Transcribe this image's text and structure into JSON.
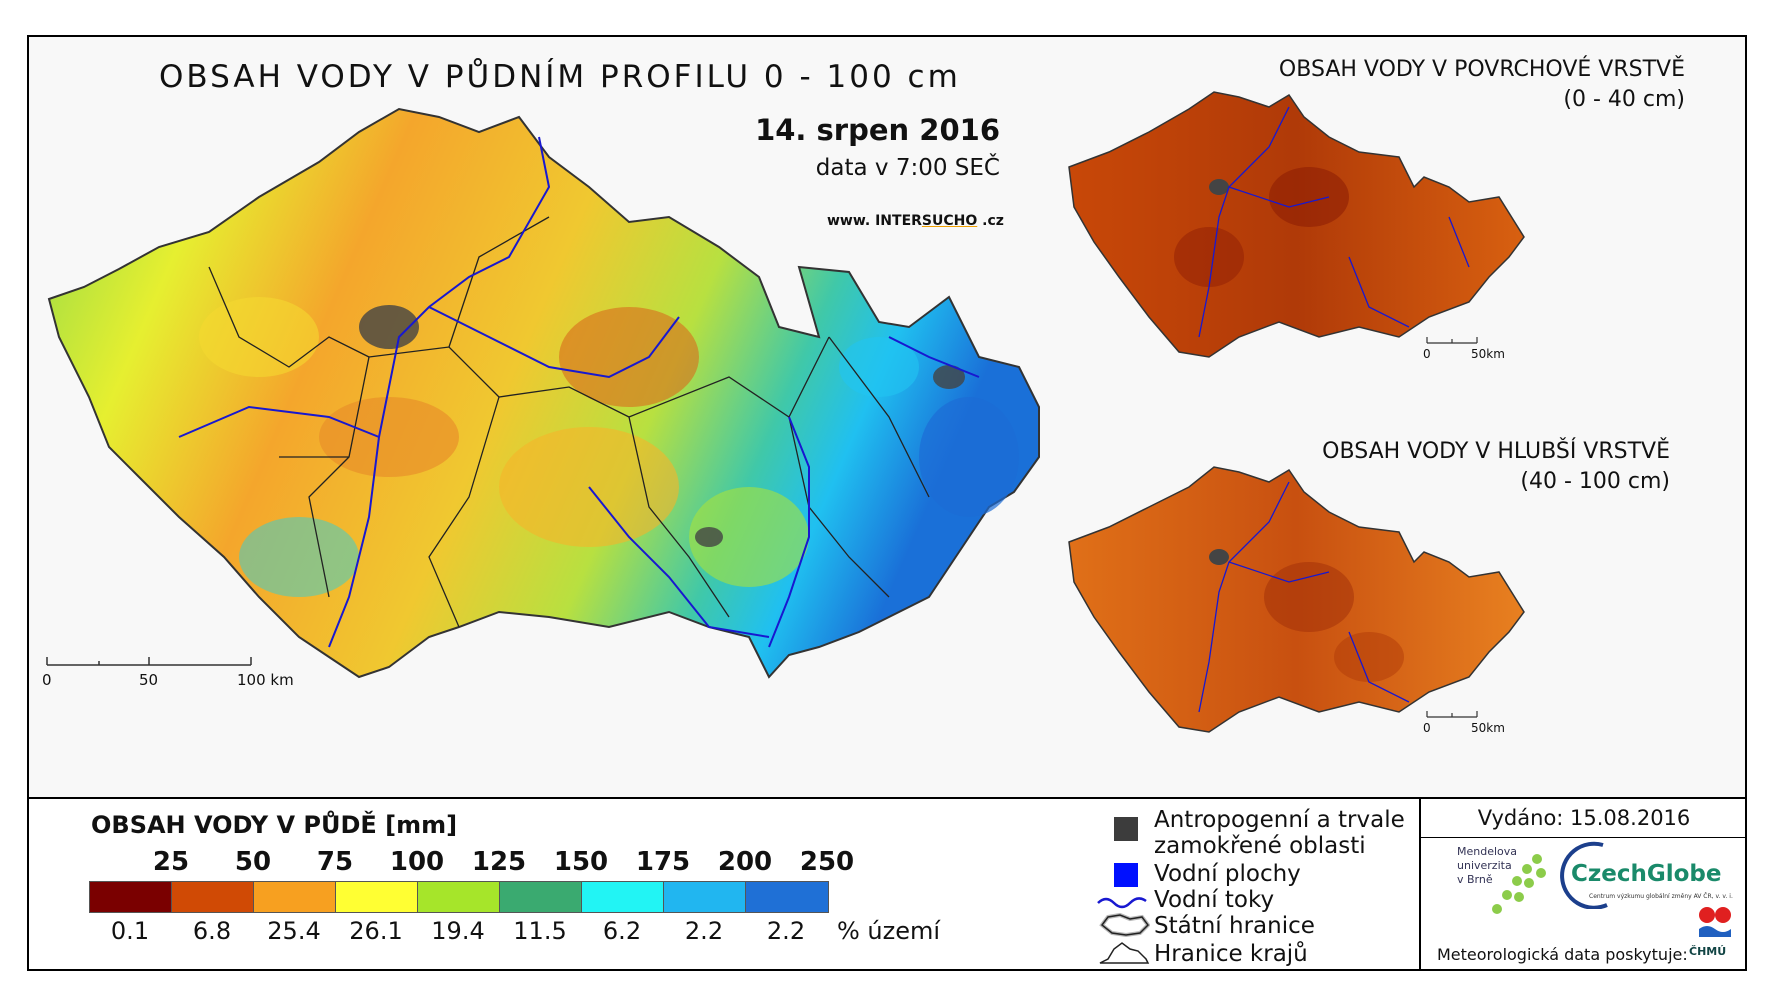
{
  "main_map": {
    "title": "OBSAH VODY V PŮDNÍM PROFILU 0 - 100 cm",
    "date": "14. srpen 2016",
    "time": "data v 7:00 SEČ",
    "website_prefix": "www. INTER",
    "website_highlight": "SUCHO",
    "website_suffix": " .cz",
    "scale_labels": [
      "0",
      "50",
      "100 km"
    ]
  },
  "surface_map": {
    "title": "OBSAH VODY V POVRCHOVÉ VRSTVĚ",
    "subtitle": "(0 - 40 cm)",
    "scale_labels": [
      "0",
      "50km"
    ]
  },
  "deep_map": {
    "title": "OBSAH VODY V HLUBŠÍ VRSTVĚ",
    "subtitle": "(40 - 100 cm)",
    "scale_labels": [
      "0",
      "50km"
    ]
  },
  "legend": {
    "title": "OBSAH VODY V PŮDĚ [mm]",
    "thresholds": [
      "25",
      "50",
      "75",
      "100",
      "125",
      "150",
      "175",
      "200",
      "250"
    ],
    "colors": [
      "#7a0000",
      "#d04a05",
      "#f7a020",
      "#ffff33",
      "#a6e52a",
      "#3aaa70",
      "#22f4f4",
      "#21b6f0",
      "#1f70d6"
    ],
    "percent_values": [
      "0.1",
      "6.8",
      "25.4",
      "26.1",
      "19.4",
      "11.5",
      "6.2",
      "2.2",
      "2.2"
    ],
    "percent_unit": "% území"
  },
  "symbols": {
    "anthropogenic_line1": "Antropogenní a trvale",
    "anthropogenic_line2": "zamokřené oblasti",
    "water_bodies": "Vodní plochy",
    "rivers": "Vodní toky",
    "state_border": "Státní hranice",
    "regions": "Hranice krajů",
    "anthropogenic_color": "#3c3c3c",
    "water_color": "#0010ff",
    "river_color": "#1818d0"
  },
  "footer": {
    "issued": "Vydáno: 15.08.2016",
    "mendel": "Mendelova\nuniverzita\nv Brně",
    "czechglobe": "CzechGlobe",
    "czechglobe_sub": "Centrum výzkumu globální změny AV ČR, v. v. i.",
    "meteo": "Meteorologická data poskytuje:",
    "chmu": "ČHMÚ"
  }
}
